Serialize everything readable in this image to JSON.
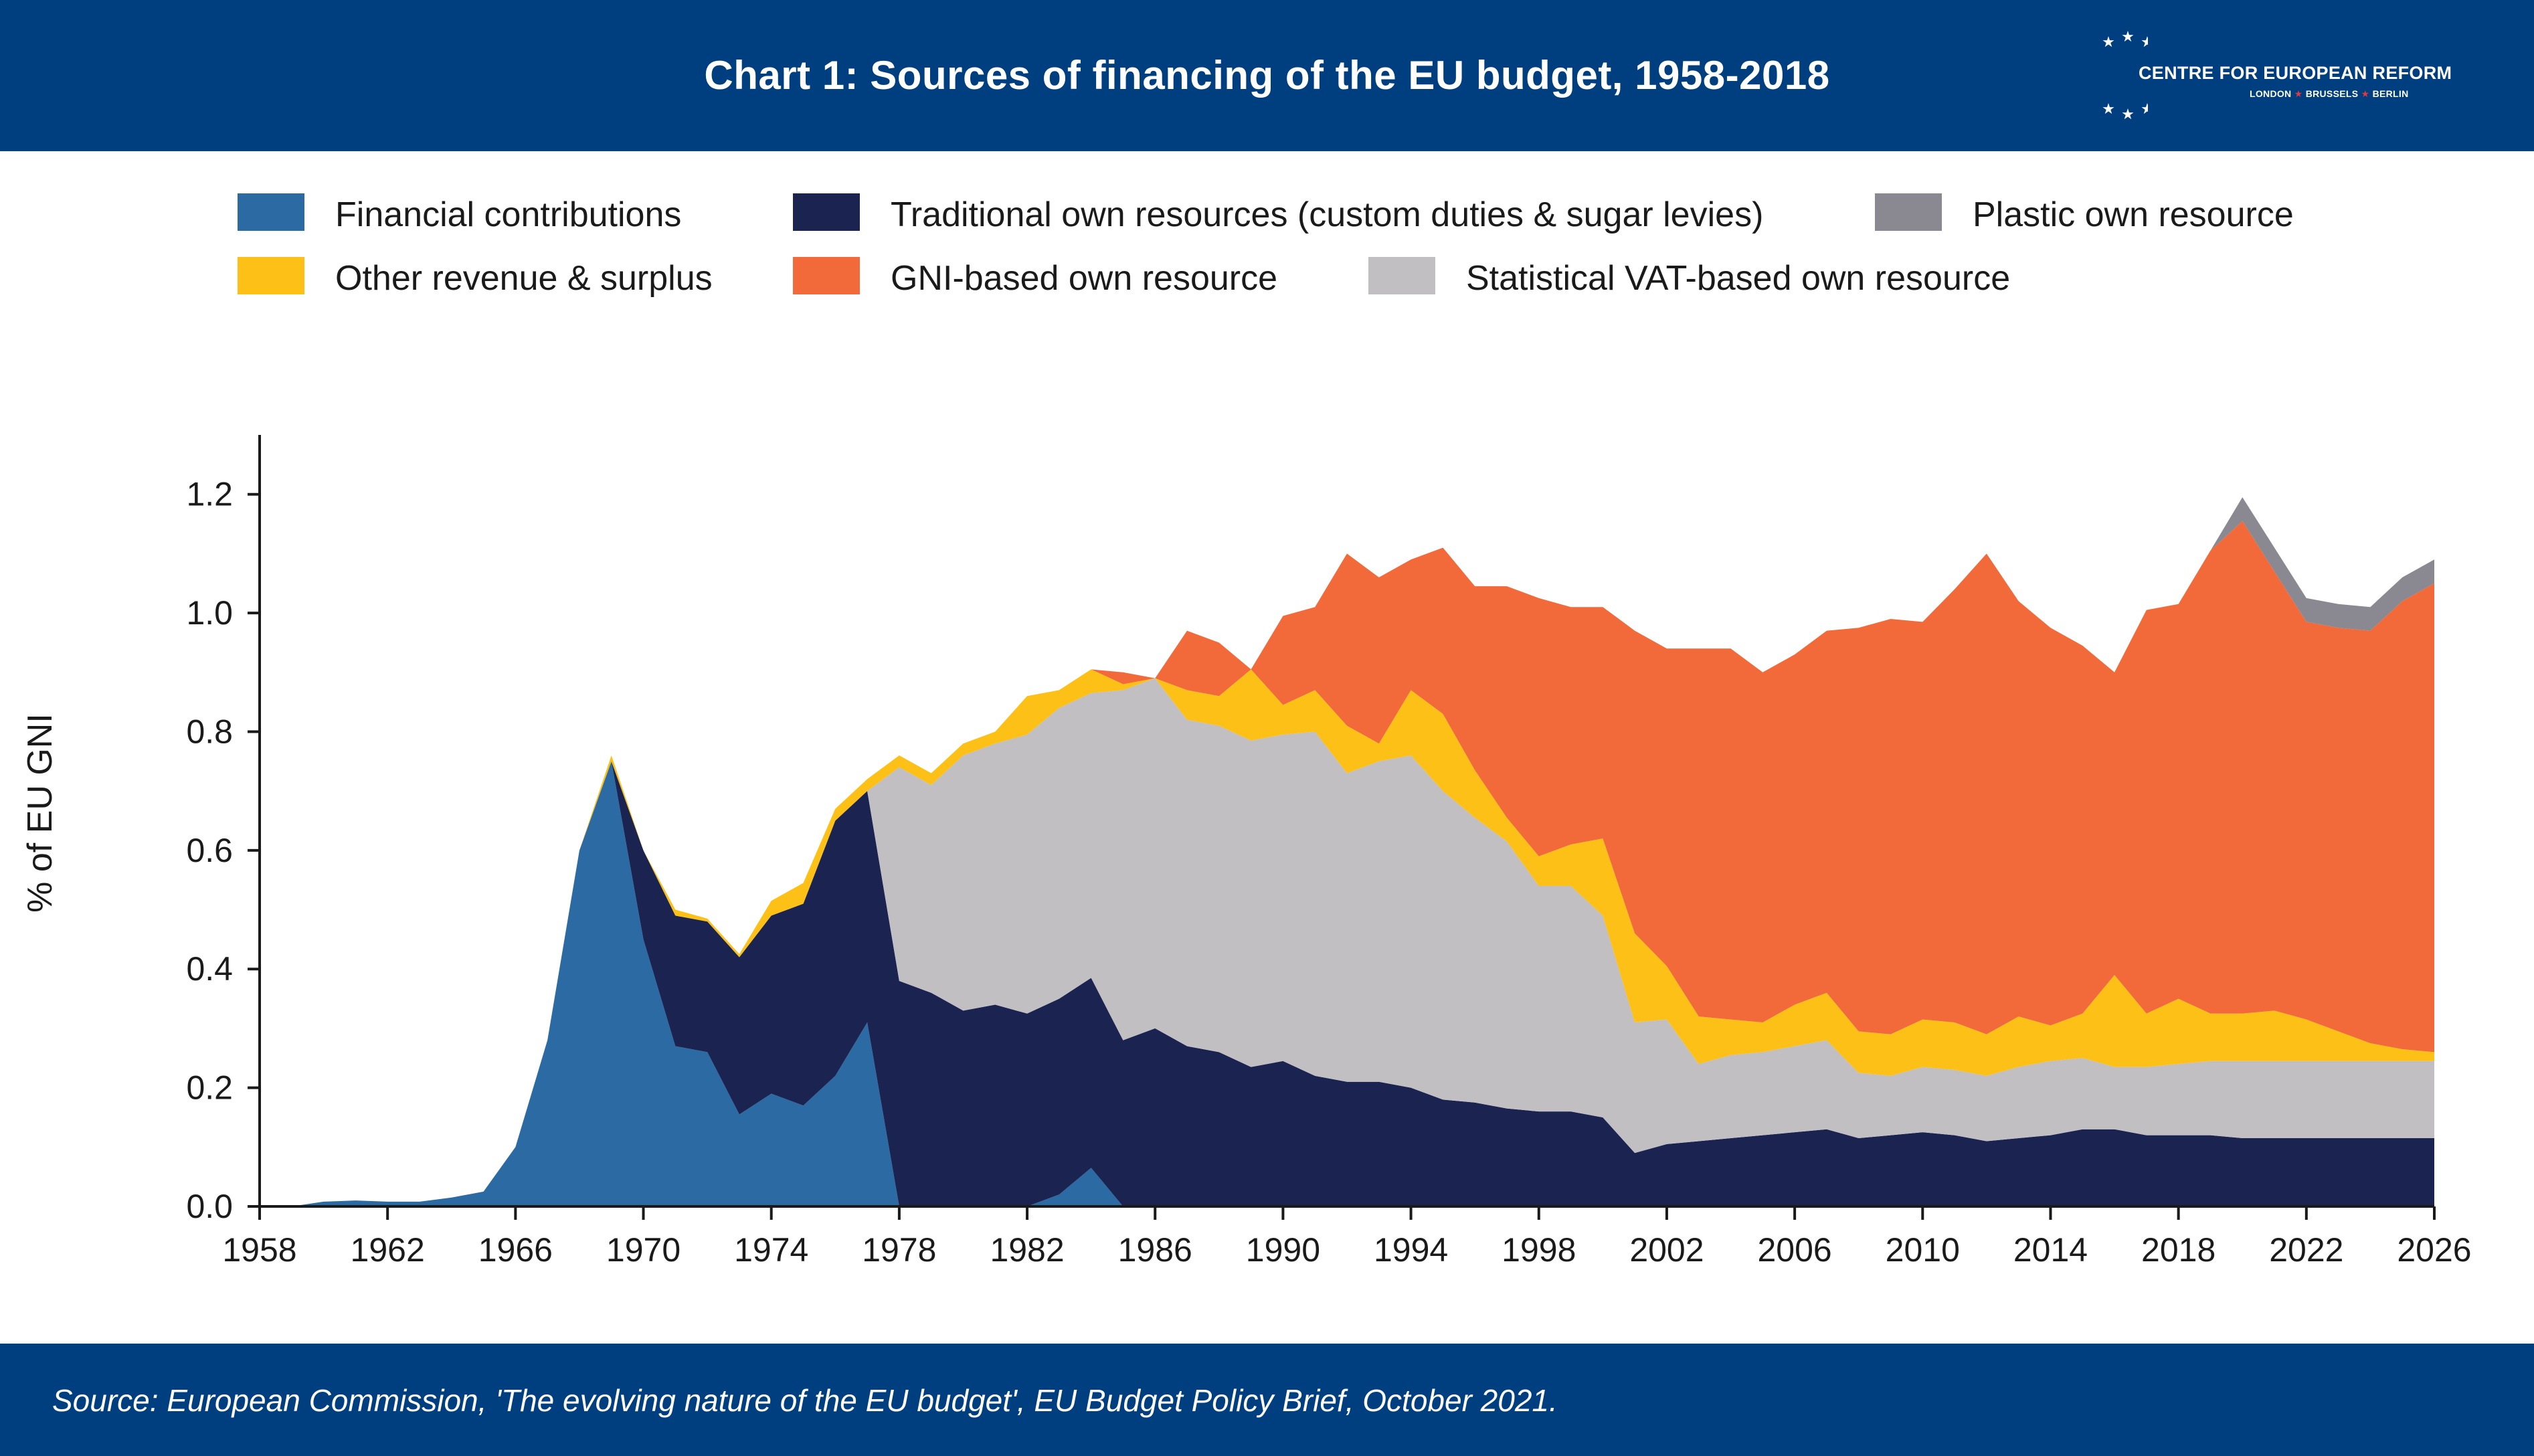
{
  "header": {
    "title": "Chart 1: Sources of financing of the EU budget, 1958-2018",
    "logo": {
      "name": "CENTRE FOR EUROPEAN REFORM",
      "city1": "LONDON",
      "city2": "BRUSSELS",
      "city3": "BERLIN",
      "star_icon": "star-icon"
    }
  },
  "footer": {
    "source": "Source: European Commission, 'The evolving nature of the EU budget', EU Budget Policy Brief, October 2021."
  },
  "colors": {
    "header_bg": "#003f7f",
    "financial": "#2b6aa3",
    "traditional": "#1b2451",
    "plastic": "#8a8890",
    "other": "#fcc017",
    "gni": "#f26a3a",
    "vat": "#c1bfc2",
    "logo_star_red": "#e03a3e"
  },
  "chart_data": {
    "type": "area",
    "stacked": true,
    "title": "Chart 1: Sources of financing of the EU budget, 1958-2018",
    "ylabel": "% of EU GNI",
    "xlabel": "",
    "xlim": [
      1958,
      2026
    ],
    "ylim": [
      0,
      1.3
    ],
    "xticks": [
      1958,
      1962,
      1966,
      1970,
      1974,
      1978,
      1982,
      1986,
      1990,
      1994,
      1998,
      2002,
      2006,
      2010,
      2014,
      2018,
      2022,
      2026
    ],
    "yticks": [
      0.0,
      0.2,
      0.4,
      0.6,
      0.8,
      1.0,
      1.2
    ],
    "ytick_labels": [
      "0.0",
      "0.2",
      "0.4",
      "0.6",
      "0.8",
      "1.0",
      "1.2"
    ],
    "grid": false,
    "legend_position": "top",
    "x": [
      1958,
      1959,
      1960,
      1961,
      1962,
      1963,
      1964,
      1965,
      1966,
      1967,
      1968,
      1969,
      1970,
      1971,
      1972,
      1973,
      1974,
      1975,
      1976,
      1977,
      1978,
      1979,
      1980,
      1981,
      1982,
      1983,
      1984,
      1985,
      1986,
      1987,
      1988,
      1989,
      1990,
      1991,
      1992,
      1993,
      1994,
      1995,
      1996,
      1997,
      1998,
      1999,
      2000,
      2001,
      2002,
      2003,
      2004,
      2005,
      2006,
      2007,
      2008,
      2009,
      2010,
      2011,
      2012,
      2013,
      2014,
      2015,
      2016,
      2017,
      2018,
      2019,
      2020,
      2021,
      2022,
      2023,
      2024,
      2025,
      2026
    ],
    "series": [
      {
        "name": "Financial contributions",
        "color_key": "financial",
        "values": [
          0,
          0,
          0.008,
          0.01,
          0.008,
          0.008,
          0.015,
          0.025,
          0.1,
          0.28,
          0.6,
          0.75,
          0.45,
          0.27,
          0.26,
          0.155,
          0.19,
          0.17,
          0.22,
          0.31,
          0,
          0,
          0,
          0,
          0,
          0.02,
          0.065,
          0,
          0,
          0,
          0,
          0,
          0,
          0,
          0,
          0,
          0,
          0,
          0,
          0,
          0,
          0,
          0,
          0,
          0,
          0,
          0,
          0,
          0,
          0,
          0,
          0,
          0,
          0,
          0,
          0,
          0,
          0,
          0,
          0,
          0,
          0,
          0,
          0,
          0,
          0,
          0,
          0,
          0
        ]
      },
      {
        "name": "Traditional own resources (custom duties & sugar levies)",
        "color_key": "traditional",
        "values": [
          0,
          0,
          0,
          0,
          0,
          0,
          0,
          0,
          0,
          0,
          0,
          0,
          0.15,
          0.22,
          0.22,
          0.265,
          0.3,
          0.34,
          0.43,
          0.39,
          0.38,
          0.36,
          0.33,
          0.34,
          0.325,
          0.33,
          0.32,
          0.28,
          0.3,
          0.27,
          0.26,
          0.235,
          0.245,
          0.22,
          0.21,
          0.21,
          0.2,
          0.18,
          0.175,
          0.165,
          0.16,
          0.16,
          0.15,
          0.09,
          0.105,
          0.11,
          0.115,
          0.12,
          0.125,
          0.13,
          0.115,
          0.12,
          0.125,
          0.12,
          0.11,
          0.115,
          0.12,
          0.13,
          0.13,
          0.12,
          0.12,
          0.12,
          0.115,
          0.115,
          0.115,
          0.115,
          0.115,
          0.115,
          0.115
        ]
      },
      {
        "name": "Statistical VAT-based own resource",
        "color_key": "vat",
        "values": [
          0,
          0,
          0,
          0,
          0,
          0,
          0,
          0,
          0,
          0,
          0,
          0,
          0,
          0,
          0,
          0,
          0,
          0,
          0,
          0,
          0.36,
          0.35,
          0.43,
          0.44,
          0.47,
          0.49,
          0.48,
          0.59,
          0.59,
          0.55,
          0.55,
          0.55,
          0.55,
          0.58,
          0.52,
          0.54,
          0.56,
          0.52,
          0.48,
          0.45,
          0.38,
          0.38,
          0.34,
          0.22,
          0.21,
          0.13,
          0.14,
          0.14,
          0.145,
          0.15,
          0.11,
          0.1,
          0.11,
          0.11,
          0.11,
          0.12,
          0.125,
          0.12,
          0.105,
          0.115,
          0.12,
          0.125,
          0.13,
          0.13,
          0.13,
          0.13,
          0.13,
          0.13,
          0.13
        ]
      },
      {
        "name": "Other revenue & surplus",
        "color_key": "other",
        "values": [
          0,
          0,
          0,
          0,
          0,
          0,
          0,
          0,
          0,
          0,
          0,
          0.01,
          0,
          0.01,
          0.005,
          0.005,
          0.025,
          0.035,
          0.02,
          0.02,
          0.02,
          0.02,
          0.02,
          0.02,
          0.065,
          0.03,
          0.04,
          0.01,
          0,
          0.05,
          0.05,
          0.12,
          0.05,
          0.07,
          0.08,
          0.03,
          0.11,
          0.13,
          0.08,
          0.04,
          0.05,
          0.07,
          0.13,
          0.15,
          0.09,
          0.08,
          0.06,
          0.05,
          0.07,
          0.08,
          0.07,
          0.07,
          0.08,
          0.08,
          0.07,
          0.085,
          0.06,
          0.075,
          0.155,
          0.09,
          0.11,
          0.08,
          0.08,
          0.085,
          0.07,
          0.05,
          0.03,
          0.02,
          0.015
        ]
      },
      {
        "name": "GNI-based own resource",
        "color_key": "gni",
        "values": [
          0,
          0,
          0,
          0,
          0,
          0,
          0,
          0,
          0,
          0,
          0,
          0,
          0,
          0,
          0,
          0,
          0,
          0,
          0,
          0,
          0,
          0,
          0,
          0,
          0,
          0,
          0,
          0.02,
          0,
          0.1,
          0.09,
          0,
          0.15,
          0.14,
          0.29,
          0.28,
          0.22,
          0.28,
          0.31,
          0.39,
          0.435,
          0.4,
          0.39,
          0.51,
          0.535,
          0.62,
          0.625,
          0.59,
          0.59,
          0.61,
          0.68,
          0.7,
          0.67,
          0.73,
          0.81,
          0.7,
          0.67,
          0.62,
          0.51,
          0.68,
          0.665,
          0.78,
          0.83,
          0.74,
          0.67,
          0.68,
          0.695,
          0.755,
          0.79
        ]
      },
      {
        "name": "Plastic own resource",
        "color_key": "plastic",
        "values": [
          0,
          0,
          0,
          0,
          0,
          0,
          0,
          0,
          0,
          0,
          0,
          0,
          0,
          0,
          0,
          0,
          0,
          0,
          0,
          0,
          0,
          0,
          0,
          0,
          0,
          0,
          0,
          0,
          0,
          0,
          0,
          0,
          0,
          0,
          0,
          0,
          0,
          0,
          0,
          0,
          0,
          0,
          0,
          0,
          0,
          0,
          0,
          0,
          0,
          0,
          0,
          0,
          0,
          0,
          0,
          0,
          0,
          0,
          0,
          0,
          0,
          0,
          0.04,
          0.04,
          0.04,
          0.04,
          0.04,
          0.04,
          0.04
        ]
      }
    ],
    "legend": [
      {
        "label": "Financial contributions",
        "color_key": "financial"
      },
      {
        "label": "Traditional own resources (custom duties & sugar levies)",
        "color_key": "traditional"
      },
      {
        "label": "Plastic own resource",
        "color_key": "plastic"
      },
      {
        "label": "Other revenue & surplus",
        "color_key": "other"
      },
      {
        "label": "GNI-based own resource",
        "color_key": "gni"
      },
      {
        "label": "Statistical VAT-based own resource",
        "color_key": "vat"
      }
    ]
  }
}
